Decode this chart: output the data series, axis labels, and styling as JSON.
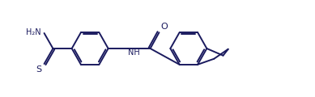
{
  "bg_color": "#ffffff",
  "line_color": "#1a1a5e",
  "line_width": 1.4,
  "font_size": 7.0,
  "figsize": [
    3.89,
    1.2
  ],
  "dpi": 100,
  "xlim": [
    0,
    10
  ],
  "ylim": [
    0,
    3
  ]
}
